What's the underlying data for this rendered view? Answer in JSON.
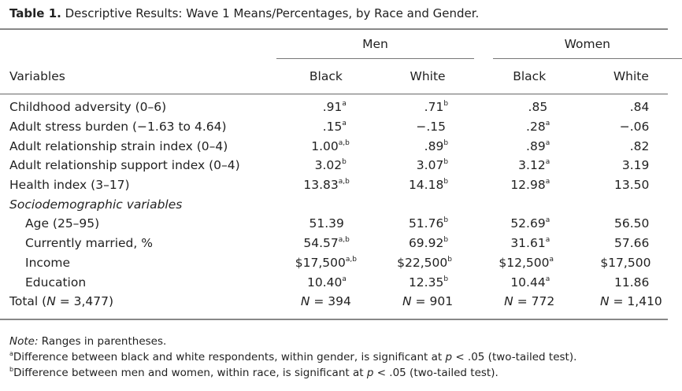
{
  "title": {
    "label": "Table 1.",
    "text": "Descriptive Results: Wave 1 Means/Percentages, by Race and Gender."
  },
  "groups": [
    "Men",
    "Women"
  ],
  "columns": [
    "Variables",
    "Black",
    "White",
    "Black",
    "White"
  ],
  "rows": [
    {
      "label": "Childhood adversity (0–6)",
      "cells": [
        {
          "v": ".91",
          "s": "a"
        },
        {
          "v": ".71",
          "s": "b"
        },
        {
          "v": ".85",
          "s": ""
        },
        {
          "v": ".84",
          "s": ""
        }
      ]
    },
    {
      "label": "Adult stress burden (−1.63 to 4.64)",
      "cells": [
        {
          "v": ".15",
          "s": "a"
        },
        {
          "v": "−.15",
          "s": ""
        },
        {
          "v": ".28",
          "s": "a"
        },
        {
          "v": "−.06",
          "s": ""
        }
      ]
    },
    {
      "label": "Adult relationship strain index (0–4)",
      "cells": [
        {
          "v": "1.00",
          "s": "a,b"
        },
        {
          "v": ".89",
          "s": "b"
        },
        {
          "v": ".89",
          "s": "a"
        },
        {
          "v": ".82",
          "s": ""
        }
      ]
    },
    {
      "label": "Adult relationship support index (0–4)",
      "cells": [
        {
          "v": "3.02",
          "s": "b"
        },
        {
          "v": "3.07",
          "s": "b"
        },
        {
          "v": "3.12",
          "s": "a"
        },
        {
          "v": "3.19",
          "s": ""
        }
      ]
    },
    {
      "label": "Health index (3–17)",
      "cells": [
        {
          "v": "13.83",
          "s": "a,b"
        },
        {
          "v": "14.18",
          "s": "b"
        },
        {
          "v": "12.98",
          "s": "a"
        },
        {
          "v": "13.50",
          "s": ""
        }
      ]
    }
  ],
  "section_label": "Sociodemographic variables",
  "section_rows": [
    {
      "label": "Age (25–95)",
      "cells": [
        {
          "v": "51.39",
          "s": ""
        },
        {
          "v": "51.76",
          "s": "b"
        },
        {
          "v": "52.69",
          "s": "a"
        },
        {
          "v": "56.50",
          "s": ""
        }
      ]
    },
    {
      "label": "Currently married, %",
      "cells": [
        {
          "v": "54.57",
          "s": "a,b"
        },
        {
          "v": "69.92",
          "s": "b"
        },
        {
          "v": "31.61",
          "s": "a"
        },
        {
          "v": "57.66",
          "s": ""
        }
      ]
    },
    {
      "label": "Income",
      "cells": [
        {
          "v": "$17,500",
          "s": "a,b"
        },
        {
          "v": "$22,500",
          "s": "b"
        },
        {
          "v": "$12,500",
          "s": "a"
        },
        {
          "v": "$17,500",
          "s": ""
        }
      ]
    },
    {
      "label": "Education",
      "cells": [
        {
          "v": "10.40",
          "s": "a"
        },
        {
          "v": "12.35",
          "s": "b"
        },
        {
          "v": "10.44",
          "s": "a"
        },
        {
          "v": "11.86",
          "s": ""
        }
      ]
    }
  ],
  "total": {
    "label_pre": "Total (",
    "label_n": "N",
    "label_post": " = 3,477)",
    "n_prefix": "N",
    "cells": [
      " = 394",
      " = 901",
      " = 772",
      " = 1,410"
    ]
  },
  "notes": {
    "note_label": "Note:",
    "note_text": " Ranges in parentheses.",
    "a_mark": "a",
    "a_pre": "Difference between black and white respondents, within gender, is significant at ",
    "a_p": "p",
    "a_post": " < .05 (two-tailed test).",
    "b_mark": "b",
    "b_pre": "Difference between men and women, within race, is significant at ",
    "b_p": "p",
    "b_post": " < .05 (two-tailed test)."
  }
}
